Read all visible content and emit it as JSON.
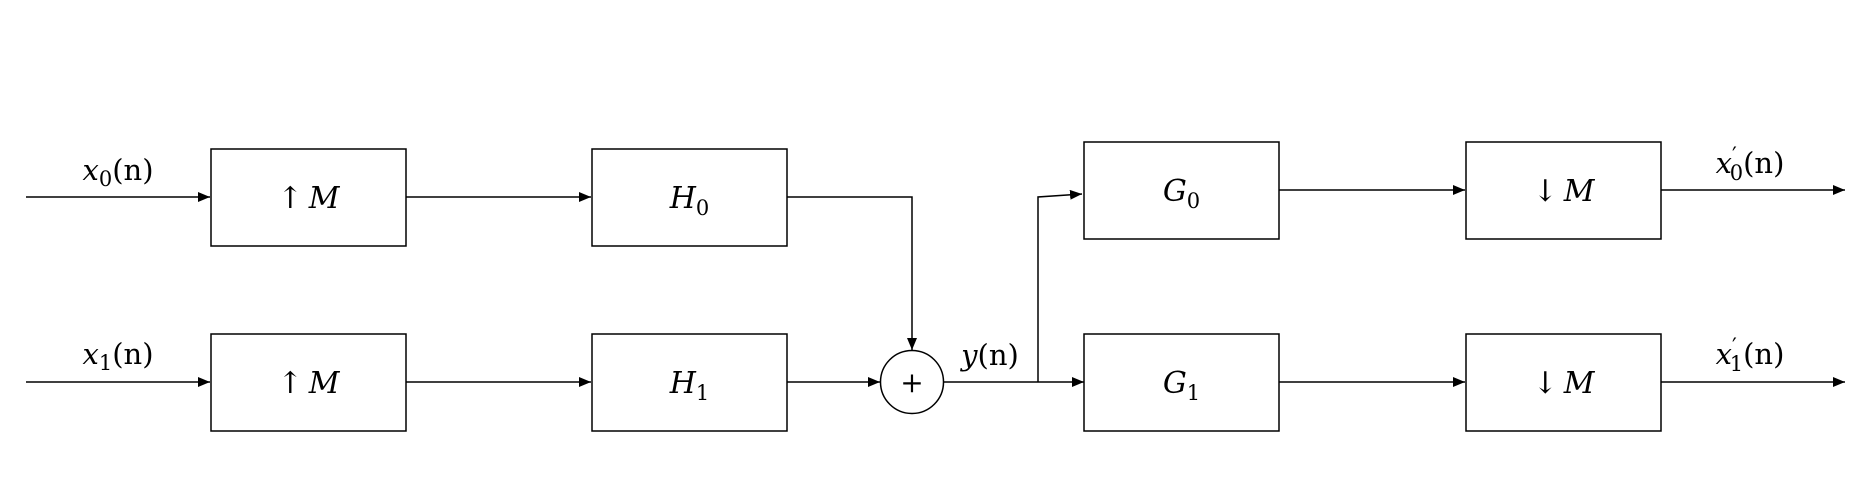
{
  "inputs": [
    {
      "var": "x",
      "sub": "0",
      "arg": "(n)"
    },
    {
      "var": "x",
      "sub": "1",
      "arg": "(n)"
    }
  ],
  "upsamplers": [
    {
      "arrow": "↑",
      "factor": "M"
    },
    {
      "arrow": "↑",
      "factor": "M"
    }
  ],
  "synthesis_filters": [
    {
      "name": "H",
      "sub": "0"
    },
    {
      "name": "H",
      "sub": "1"
    }
  ],
  "adder": {
    "symbol": "+"
  },
  "channel": {
    "var": "y",
    "arg": "(n)"
  },
  "analysis_filters": [
    {
      "name": "G",
      "sub": "0"
    },
    {
      "name": "G",
      "sub": "1"
    }
  ],
  "downsamplers": [
    {
      "arrow": "↓",
      "factor": "M"
    },
    {
      "arrow": "↓",
      "factor": "M"
    }
  ],
  "outputs": [
    {
      "var": "x",
      "prime": "′",
      "sub": "0",
      "arg": "(n)"
    },
    {
      "var": "x",
      "prime": "′",
      "sub": "1",
      "arg": "(n)"
    }
  ]
}
